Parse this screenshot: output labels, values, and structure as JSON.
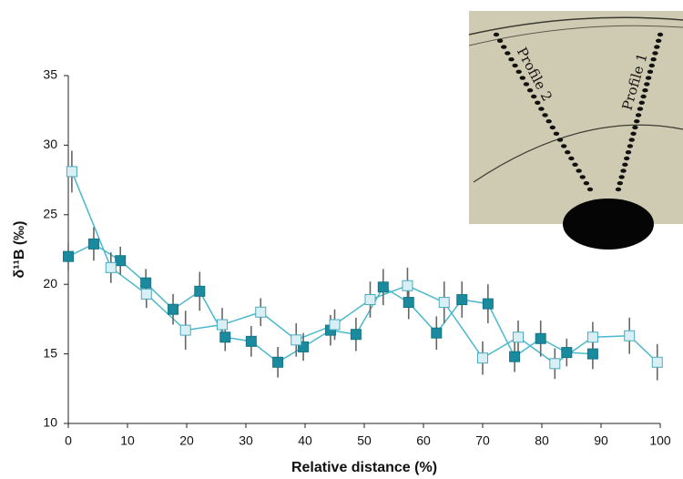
{
  "chart_data": {
    "type": "scatter-line",
    "x_label": "Relative distance (%)",
    "y_label": "δ¹¹B (‰)",
    "xlim": [
      0,
      100
    ],
    "xticks": [
      0,
      10,
      20,
      30,
      40,
      50,
      60,
      70,
      80,
      90,
      100
    ],
    "ylim": [
      10,
      35
    ],
    "yticks": [
      10,
      15,
      20,
      25,
      30,
      35
    ],
    "inset_labels": [
      "Profile 2",
      "Profile 1"
    ],
    "series": [
      {
        "marker_fill": "#1a8a9e",
        "marker_stroke": "#157585",
        "color": "#4ab8cc",
        "x": [
          0,
          4.3,
          8.8,
          13.1,
          17.7,
          22.2,
          26.5,
          30.9,
          35.4,
          39.7,
          44.3,
          48.6,
          53.2,
          57.5,
          62.2,
          66.5,
          70.9,
          75.4,
          79.8,
          84.2,
          88.6
        ],
        "values": [
          22.0,
          22.9,
          21.7,
          20.1,
          18.2,
          19.5,
          16.2,
          15.9,
          14.4,
          15.5,
          16.7,
          16.4,
          19.8,
          18.7,
          16.5,
          18.9,
          18.6,
          14.8,
          16.1,
          15.1,
          15.0
        ],
        "errors": [
          1.0,
          1.2,
          1.0,
          1.0,
          1.1,
          1.4,
          1.0,
          1.1,
          1.1,
          1.0,
          1.1,
          1.2,
          1.3,
          1.2,
          1.2,
          1.3,
          1.4,
          1.1,
          1.3,
          1.0,
          1.1
        ]
      },
      {
        "marker_fill": "#d8f0f5",
        "marker_stroke": "#4aaabf",
        "color": "#4ab8cc",
        "x": [
          0.6,
          7.2,
          13.2,
          19.8,
          26,
          32.5,
          38.5,
          45,
          51,
          57.3,
          63.5,
          70,
          76,
          82.2,
          88.6,
          94.8,
          99.5
        ],
        "values": [
          28.1,
          21.2,
          19.3,
          16.7,
          17.1,
          18.0,
          16.0,
          17.1,
          18.9,
          19.9,
          18.7,
          14.7,
          16.2,
          14.3,
          16.2,
          16.3,
          14.4
        ],
        "errors": [
          1.5,
          1.1,
          1.0,
          1.4,
          1.2,
          1.0,
          1.2,
          1.1,
          1.3,
          1.3,
          1.5,
          1.2,
          1.2,
          1.1,
          1.1,
          1.3,
          1.3
        ]
      }
    ]
  }
}
